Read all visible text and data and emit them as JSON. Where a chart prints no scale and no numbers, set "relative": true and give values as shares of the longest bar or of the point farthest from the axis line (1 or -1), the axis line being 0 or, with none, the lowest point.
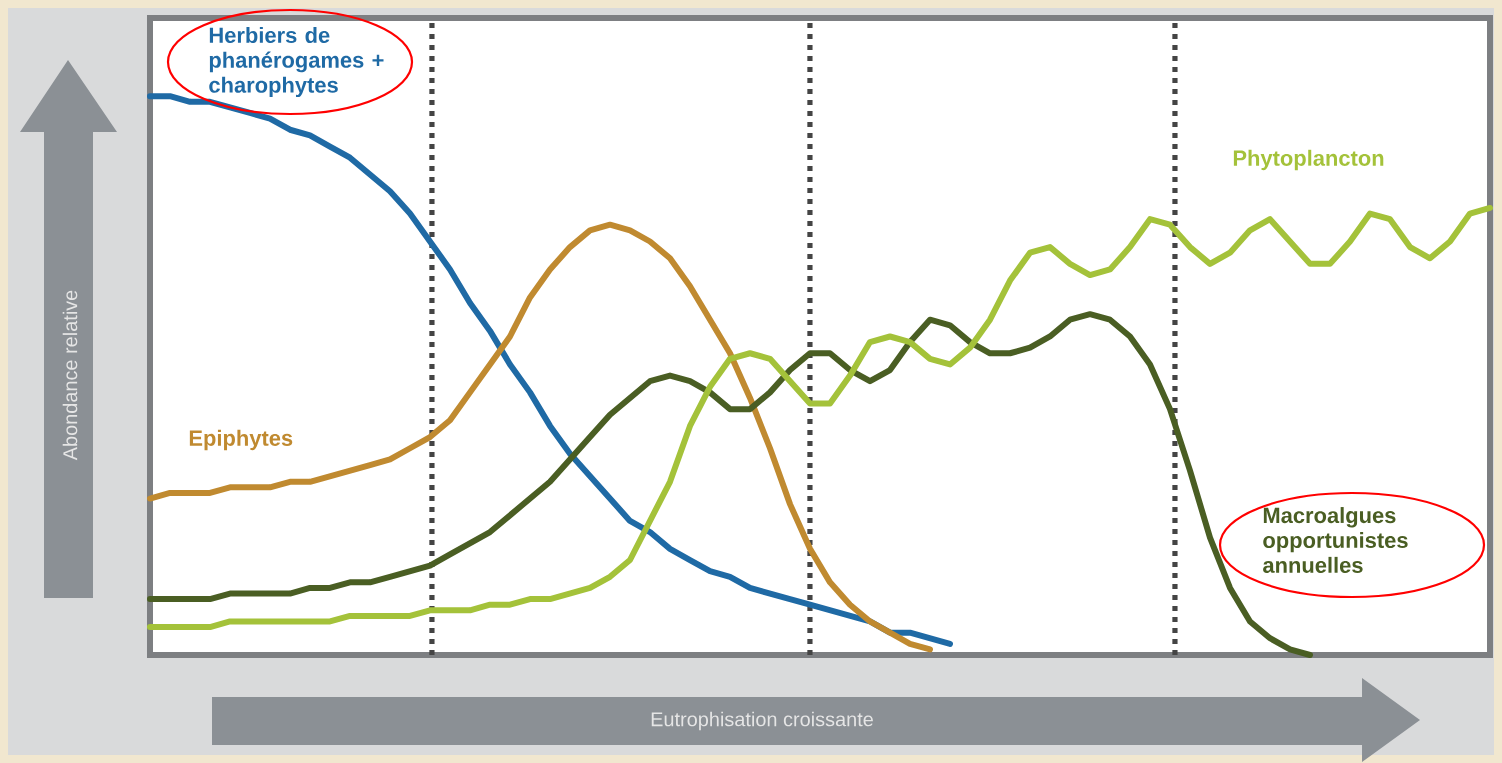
{
  "chart_data": {
    "type": "line",
    "relative": true,
    "xlabel": "Eutrophisation croissante",
    "ylabel": "Abondance relative",
    "categories": [
      null,
      null,
      null,
      null,
      null,
      null,
      null,
      null,
      null,
      null,
      null,
      null,
      null,
      null,
      null,
      null,
      null,
      null,
      null,
      null,
      null,
      null,
      null,
      null,
      null,
      null,
      null,
      null,
      null,
      null,
      null,
      null,
      null,
      null,
      null,
      null,
      null,
      null,
      null,
      null,
      null,
      null,
      null,
      null,
      null,
      null,
      null,
      null,
      null,
      null,
      null,
      null,
      null,
      null,
      null,
      null,
      null,
      null,
      null,
      null,
      null,
      null,
      null,
      null,
      null,
      null,
      null,
      null
    ],
    "series": [
      {
        "name": "Herbiers de phanérogames + charophytes",
        "color": "#1f6aa5",
        "values": [
          1.0,
          1.0,
          0.99,
          0.99,
          0.98,
          0.97,
          0.96,
          0.94,
          0.93,
          0.91,
          0.89,
          0.86,
          0.83,
          0.79,
          0.74,
          0.69,
          0.63,
          0.58,
          0.52,
          0.47,
          0.41,
          0.36,
          0.32,
          0.28,
          0.24,
          0.22,
          0.19,
          0.17,
          0.15,
          0.14,
          0.12,
          0.11,
          0.1,
          0.09,
          0.08,
          0.07,
          0.06,
          0.04,
          0.04,
          0.03,
          0.02,
          null,
          null,
          null,
          null,
          null,
          null,
          null,
          null,
          null,
          null,
          null,
          null,
          null,
          null,
          null,
          null,
          null,
          null,
          null,
          null,
          null,
          null,
          null,
          null,
          null,
          null,
          null
        ]
      },
      {
        "name": "Epiphytes",
        "color": "#c08a30",
        "values": [
          0.28,
          0.29,
          0.29,
          0.29,
          0.3,
          0.3,
          0.3,
          0.31,
          0.31,
          0.32,
          0.33,
          0.34,
          0.35,
          0.37,
          0.39,
          0.42,
          0.47,
          0.52,
          0.57,
          0.64,
          0.69,
          0.73,
          0.76,
          0.77,
          0.76,
          0.74,
          0.71,
          0.66,
          0.6,
          0.54,
          0.46,
          0.37,
          0.27,
          0.19,
          0.13,
          0.09,
          0.06,
          0.04,
          0.02,
          0.01,
          null,
          null,
          null,
          null,
          null,
          null,
          null,
          null,
          null,
          null,
          null,
          null,
          null,
          null,
          null,
          null,
          null,
          null,
          null,
          null,
          null,
          null,
          null,
          null,
          null,
          null,
          null,
          null
        ]
      },
      {
        "name": "Macroalgues opportunistes annuelles",
        "color": "#4a5e23",
        "values": [
          0.1,
          0.1,
          0.1,
          0.1,
          0.11,
          0.11,
          0.11,
          0.11,
          0.12,
          0.12,
          0.13,
          0.13,
          0.14,
          0.15,
          0.16,
          0.18,
          0.2,
          0.22,
          0.25,
          0.28,
          0.31,
          0.35,
          0.39,
          0.43,
          0.46,
          0.49,
          0.5,
          0.49,
          0.47,
          0.44,
          0.44,
          0.47,
          0.51,
          0.54,
          0.54,
          0.51,
          0.49,
          0.51,
          0.56,
          0.6,
          0.59,
          0.56,
          0.54,
          0.54,
          0.55,
          0.57,
          0.6,
          0.61,
          0.6,
          0.57,
          0.52,
          0.44,
          0.33,
          0.21,
          0.12,
          0.06,
          0.03,
          0.01,
          0,
          null,
          null,
          null,
          null,
          null,
          null,
          null,
          null,
          null
        ]
      },
      {
        "name": "Phytoplancton",
        "color": "#a4c23a",
        "values": [
          0.05,
          0.05,
          0.05,
          0.05,
          0.06,
          0.06,
          0.06,
          0.06,
          0.06,
          0.06,
          0.07,
          0.07,
          0.07,
          0.07,
          0.08,
          0.08,
          0.08,
          0.09,
          0.09,
          0.1,
          0.1,
          0.11,
          0.12,
          0.14,
          0.17,
          0.24,
          0.31,
          0.41,
          0.48,
          0.53,
          0.54,
          0.53,
          0.49,
          0.45,
          0.45,
          0.5,
          0.56,
          0.57,
          0.56,
          0.53,
          0.52,
          0.55,
          0.6,
          0.67,
          0.72,
          0.73,
          0.7,
          0.68,
          0.69,
          0.73,
          0.78,
          0.77,
          0.73,
          0.7,
          0.72,
          0.76,
          0.78,
          0.74,
          0.7,
          0.7,
          0.74,
          0.79,
          0.78,
          0.73,
          0.71,
          0.74,
          0.79,
          0.8
        ]
      }
    ]
  }
}
